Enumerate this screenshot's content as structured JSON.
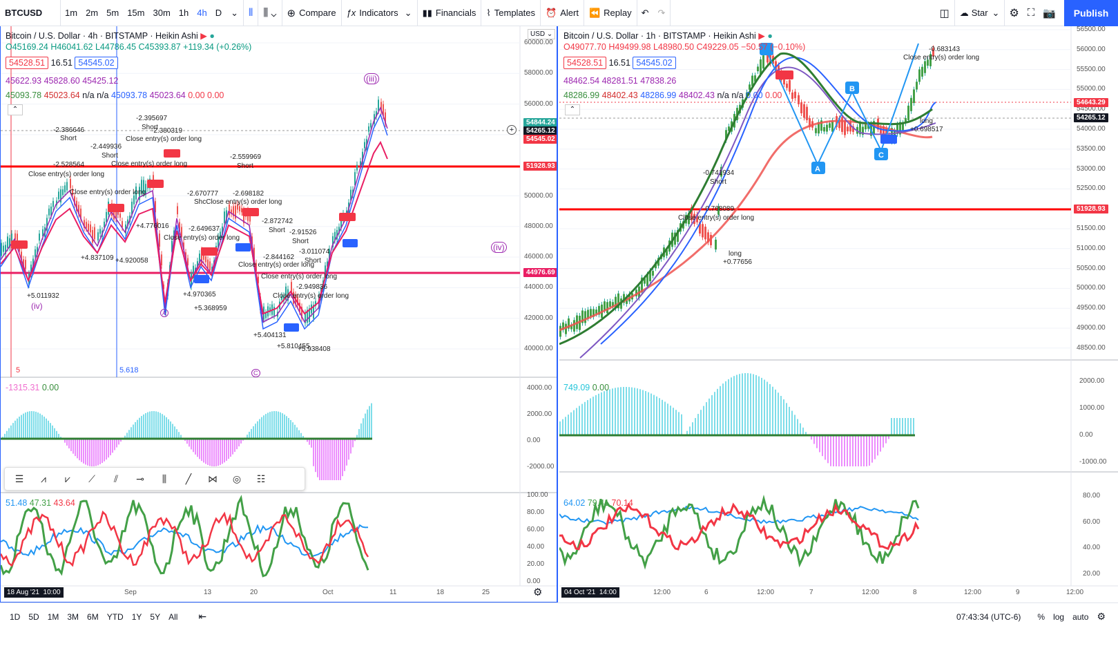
{
  "symbol": "BTCUSD",
  "timeframes": [
    "1m",
    "2m",
    "5m",
    "15m",
    "30m",
    "1h",
    "4h",
    "D"
  ],
  "active_timeframe": "4h",
  "toolbar": {
    "compare": "Compare",
    "indicators": "Indicators",
    "financials": "Financials",
    "templates": "Templates",
    "alert": "Alert",
    "replay": "Replay",
    "layout": "Star",
    "publish": "Publish"
  },
  "left": {
    "title": "Bitcoin / U.S. Dollar · 4h · BITSTAMP · Heikin Ashi",
    "ohlc": "O45169.24 H46041.62 L44786.45 C45393.87 +119.34 (+0.26%)",
    "bid": "54528.51",
    "spread": "16.51",
    "ask": "54545.02",
    "ind1": "45622.93 45828.60 45425.12",
    "ind2a": "45093.78",
    "ind2b": "45023.64",
    "ind2c": "n/a n/a",
    "ind2d": "45093.78",
    "ind2e": "45023.64",
    "ind2f": "0.00",
    "ind2g": "0.00",
    "currency": "USD",
    "y_ticks": [
      "60000.00",
      "58000.00",
      "56000.00",
      "54000.00",
      "52000.00",
      "50000.00",
      "48000.00",
      "46000.00",
      "44000.00",
      "42000.00",
      "40000.00"
    ],
    "price_labels": {
      "p1": "54844.24",
      "p2": "54265.12",
      "p3": "54545.02",
      "p4": "51928.93",
      "p5": "44976.69"
    },
    "fib1": "5",
    "fib2": "5.618",
    "wave_iii": "(iii)",
    "wave_iv": "(iv)",
    "wave_iv2": "(iv)",
    "wave_a": "A",
    "wave_c": "C",
    "annotations": [
      {
        "t": "-2.395697",
        "x": 196,
        "y": 166
      },
      {
        "t": "Short",
        "x": 204,
        "y": 179
      },
      {
        "t": "-2.380319",
        "x": 218,
        "y": 184
      },
      {
        "t": "Close entry(s) order long",
        "x": 181,
        "y": 196
      },
      {
        "t": "-2.386646",
        "x": 76,
        "y": 183
      },
      {
        "t": "Short",
        "x": 86,
        "y": 195
      },
      {
        "t": "-2.449936",
        "x": 130,
        "y": 207
      },
      {
        "t": "Short",
        "x": 146,
        "y": 220
      },
      {
        "t": "-2.528564",
        "x": 76,
        "y": 233
      },
      {
        "t": "Close entry(s) order long",
        "x": 160,
        "y": 232
      },
      {
        "t": "-2.559969",
        "x": 332,
        "y": 222
      },
      {
        "t": "Short",
        "x": 342,
        "y": 235
      },
      {
        "t": "Close entry(s) order long",
        "x": 40,
        "y": 247
      },
      {
        "t": "Close entry(s) order long",
        "x": 100,
        "y": 273
      },
      {
        "t": "-2.670777",
        "x": 270,
        "y": 275
      },
      {
        "t": "-2.698182",
        "x": 336,
        "y": 275
      },
      {
        "t": "ShcClose entry(s) order long",
        "x": 280,
        "y": 287
      },
      {
        "t": "-2.872742",
        "x": 378,
        "y": 315
      },
      {
        "t": "Short",
        "x": 388,
        "y": 328
      },
      {
        "t": "-2.91526",
        "x": 418,
        "y": 331
      },
      {
        "t": "Short",
        "x": 422,
        "y": 344
      },
      {
        "t": "-2.649637",
        "x": 272,
        "y": 326
      },
      {
        "t": "Close entry(s) order long",
        "x": 236,
        "y": 339
      },
      {
        "t": "-3.011074",
        "x": 432,
        "y": 359
      },
      {
        "t": "Short",
        "x": 440,
        "y": 372
      },
      {
        "t": "Close entry(s) order long",
        "x": 344,
        "y": 378
      },
      {
        "t": "-2.844162",
        "x": 380,
        "y": 367
      },
      {
        "t": "Close entry(s) order long",
        "x": 377,
        "y": 395
      },
      {
        "t": "Close entry(s) order long",
        "x": 394,
        "y": 423
      },
      {
        "t": "-2.949836",
        "x": 428,
        "y": 410
      },
      {
        "t": "+4.776016",
        "x": 196,
        "y": 322
      },
      {
        "t": "+4.837109",
        "x": 116,
        "y": 368
      },
      {
        "t": "+4.920058",
        "x": 166,
        "y": 372
      },
      {
        "t": "+4.970365",
        "x": 264,
        "y": 421
      },
      {
        "t": "+5.368959",
        "x": 280,
        "y": 441
      },
      {
        "t": "+5.011932",
        "x": 38,
        "y": 423
      },
      {
        "t": "+5.404131",
        "x": 366,
        "y": 480
      },
      {
        "t": "+5.810455",
        "x": 400,
        "y": 496
      },
      {
        "t": "+5.938408",
        "x": 430,
        "y": 500
      }
    ],
    "date_label": "18 Aug '21",
    "time_label": "10:00",
    "x_ticks": [
      {
        "t": "Sep",
        "x": 179
      },
      {
        "t": "13",
        "x": 294
      },
      {
        "t": "20",
        "x": 361
      },
      {
        "t": "Oct",
        "x": 466
      },
      {
        "t": "11",
        "x": 563
      },
      {
        "t": "18",
        "x": 631
      },
      {
        "t": "25",
        "x": 697
      }
    ],
    "macd_label": "-1315.31",
    "macd_val": "0.00",
    "macd_ticks": [
      "4000.00",
      "2000.00",
      "0.00",
      "-2000.00"
    ],
    "rsi_labels": [
      "51.48",
      "47.31",
      "43.64"
    ],
    "rsi_ticks": [
      "100.00",
      "80.00",
      "60.00",
      "40.00",
      "20.00",
      "0.00"
    ]
  },
  "right": {
    "title": "Bitcoin / U.S. Dollar · 1h · BITSTAMP · Heikin Ashi",
    "ohlc": "O49077.70 H49499.98 L48980.50 C49229.05 −50.57 (−0.10%)",
    "bid": "54528.51",
    "spread": "16.51",
    "ask": "54545.02",
    "ind1": "48462.54 48281.51 47838.26",
    "ind2a": "48286.99",
    "ind2b": "48402.43",
    "ind2c": "48286.99",
    "ind2d": "48402.43",
    "ind2e": "n/a n/a",
    "ind2f": "0.00",
    "ind2g": "0.00",
    "y_ticks": [
      "56500.00",
      "56000.00",
      "55500.00",
      "55000.00",
      "54500.00",
      "54000.00",
      "53500.00",
      "53000.00",
      "52500.00",
      "52000.00",
      "51500.00",
      "51000.00",
      "50500.00",
      "50000.00",
      "49500.00",
      "49000.00",
      "48500.00"
    ],
    "price_labels": {
      "p1": "54643.29",
      "p2": "54265.12",
      "p3": "51928.93"
    },
    "annotations": [
      {
        "t": "-0.683143",
        "x": 1345,
        "y": 66
      },
      {
        "t": "Close entry(s) order long",
        "x": 1308,
        "y": 78
      },
      {
        "t": "-0.741934",
        "x": 1018,
        "y": 245
      },
      {
        "t": "Short",
        "x": 1028,
        "y": 258
      },
      {
        "t": "-0.768089",
        "x": 1018,
        "y": 297
      },
      {
        "t": "Close entry(s) order long",
        "x": 982,
        "y": 310
      },
      {
        "t": "long",
        "x": 1055,
        "y": 362
      },
      {
        "t": "+0.77656",
        "x": 1047,
        "y": 374
      },
      {
        "t": "long",
        "x": 1332,
        "y": 170
      },
      {
        "t": "+0.698517",
        "x": 1318,
        "y": 182
      }
    ],
    "date_label": "04 Oct '21",
    "time_label": "14:00",
    "x_ticks": [
      {
        "t": "12:00",
        "x": 946
      },
      {
        "t": "6",
        "x": 1020
      },
      {
        "t": "12:00",
        "x": 1096
      },
      {
        "t": "7",
        "x": 1172
      },
      {
        "t": "12:00",
        "x": 1248
      },
      {
        "t": "8",
        "x": 1322
      },
      {
        "t": "12:00",
        "x": 1396
      },
      {
        "t": "9",
        "x": 1471
      },
      {
        "t": "12:00",
        "x": 1544
      }
    ],
    "macd_label": "749.09",
    "macd_val": "0.00",
    "macd_ticks": [
      "2000.00",
      "1000.00",
      "0.00",
      "-1000.00"
    ],
    "rsi_labels": [
      "64.02",
      "79.41",
      "70.14"
    ],
    "rsi_ticks": [
      "80.00",
      "60.00",
      "40.00",
      "20.00"
    ]
  },
  "bottom": {
    "ranges": [
      "1D",
      "5D",
      "1M",
      "3M",
      "6M",
      "YTD",
      "1Y",
      "5Y",
      "All"
    ],
    "clock": "07:43:34 (UTC-6)",
    "pct": "%",
    "log": "log",
    "auto": "auto"
  },
  "colors": {
    "accent": "#2962ff",
    "bull": "#26a69a",
    "bear": "#ef5350",
    "red_line": "#ff0000",
    "magenta_line": "#e91e63"
  }
}
